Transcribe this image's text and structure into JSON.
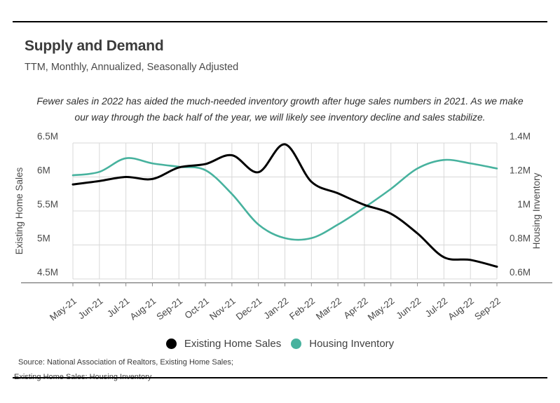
{
  "header": {
    "title": "Supply and Demand",
    "subtitle": "TTM, Monthly, Annualized, Seasonally Adjusted"
  },
  "annotation": {
    "line1": "Fewer sales in 2022 has aided the much-needed inventory growth after huge sales numbers in 2021. As we make",
    "line2": "our way through the back half of the year, we will likely see inventory decline and sales stabilize."
  },
  "chart_data": {
    "type": "line",
    "title": "Supply and Demand",
    "categories": [
      "May-21",
      "Jun-21",
      "Jul-21",
      "Aug-21",
      "Sep-21",
      "Oct-21",
      "Nov-21",
      "Dec-21",
      "Jan-22",
      "Feb-22",
      "Mar-22",
      "Apr-22",
      "May-22",
      "Jun-22",
      "Jul-22",
      "Aug-22",
      "Sep-22"
    ],
    "series": [
      {
        "name": "Existing Home Sales",
        "axis": "left",
        "color": "#000000",
        "line_width": 3,
        "values": [
          5.89,
          5.94,
          6.0,
          5.97,
          6.14,
          6.19,
          6.32,
          6.07,
          6.48,
          5.93,
          5.76,
          5.59,
          5.46,
          5.17,
          4.82,
          4.78,
          4.68
        ]
      },
      {
        "name": "Housing Inventory",
        "axis": "right",
        "color": "#47b29e",
        "line_width": 2.6,
        "values": [
          1.21,
          1.23,
          1.31,
          1.28,
          1.26,
          1.24,
          1.1,
          0.92,
          0.84,
          0.84,
          0.92,
          1.02,
          1.13,
          1.25,
          1.3,
          1.28,
          1.25
        ]
      }
    ],
    "left_axis": {
      "label": "Existing Home Sales",
      "ticks": [
        "6.5M",
        "6M",
        "5.5M",
        "5M",
        "4.5M"
      ],
      "tick_values": [
        6.5,
        6.0,
        5.5,
        5.0,
        4.5
      ],
      "range": [
        4.5,
        6.5
      ]
    },
    "right_axis": {
      "label": "Housing Inventory",
      "ticks": [
        "1.4M",
        "1.2M",
        "1M",
        "0.8M",
        "0.6M"
      ],
      "tick_values": [
        1.4,
        1.2,
        1.0,
        0.8,
        0.6
      ],
      "range": [
        0.6,
        1.4
      ]
    },
    "grid": true,
    "legend_position": "bottom",
    "x_label_rotation_deg": -38
  },
  "source": {
    "line1": "Source:  National Association of Realtors, Existing Home Sales;",
    "line2": "Existing Home Sales: Housing Inventory"
  }
}
